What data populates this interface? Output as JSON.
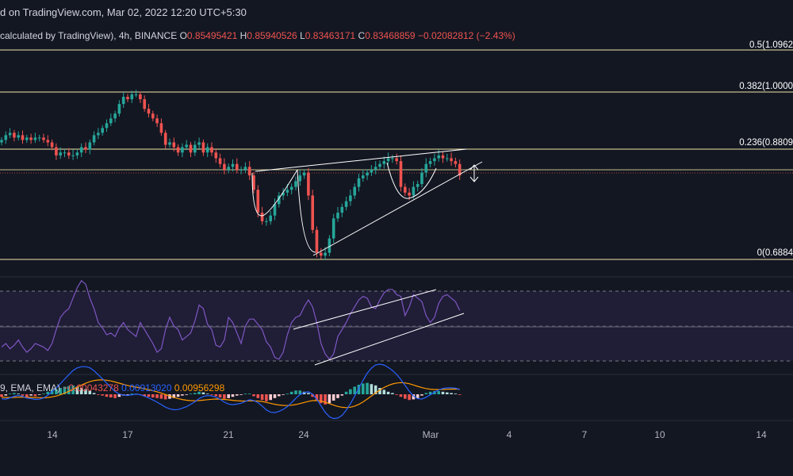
{
  "header": {
    "publish_line": "d on TradingView.com, Mar 02, 2022 12:20 UTC+5:30",
    "symbol_line": "calculated by TradingView), 4h, BINANCE",
    "ohlc": {
      "open_label": "O",
      "open": "0.85495421",
      "high_label": "H",
      "high": "0.85940526",
      "low_label": "L",
      "low": "0.83463171",
      "close_label": "C",
      "close": "0.83468859",
      "change": "−0.02082812 (−2.43%)"
    }
  },
  "fib_levels": [
    {
      "label": "0.5(1.0962",
      "price": 1.0962
    },
    {
      "label": "0.382(1.0000",
      "price": 1.0
    },
    {
      "label": "0.236(0.8809",
      "price": 0.8809
    },
    {
      "label": "0(0.6884",
      "price": 0.6884
    }
  ],
  "macd_header": {
    "params": "9, EMA, EMA)",
    "histogram": "−0.00043278",
    "macd": "0.00913020",
    "signal": "0.00956298"
  },
  "colors": {
    "background": "#131722",
    "up": "#26a69a",
    "down": "#ef5350",
    "fib_line": "#f0e6a8",
    "rsi_line": "#7e57c2",
    "rsi_band": "#2a2246",
    "macd_line": "#2962ff",
    "signal_line": "#ff9800",
    "trend_line": "#ffffff"
  },
  "x_axis": {
    "ticks": [
      {
        "label": "14",
        "bar": 13
      },
      {
        "label": "17",
        "bar": 31
      },
      {
        "label": "21",
        "bar": 55
      },
      {
        "label": "24",
        "bar": 73
      },
      {
        "label": "Mar",
        "bar": 103
      },
      {
        "label": "4",
        "bar": 121
      },
      {
        "label": "7",
        "bar": 139
      },
      {
        "label": "10",
        "bar": 157
      },
      {
        "label": "14",
        "bar": 181
      }
    ]
  },
  "chart_data": {
    "type": "candlestick",
    "interval": "4h",
    "exchange": "BINANCE",
    "price_range": [
      0.66,
      1.1
    ],
    "candles_close": [
      0.9,
      0.91,
      0.915,
      0.905,
      0.91,
      0.9,
      0.905,
      0.9,
      0.905,
      0.905,
      0.9,
      0.895,
      0.885,
      0.87,
      0.875,
      0.875,
      0.87,
      0.87,
      0.875,
      0.885,
      0.88,
      0.895,
      0.91,
      0.915,
      0.925,
      0.935,
      0.945,
      0.955,
      0.975,
      0.99,
      0.985,
      0.995,
      0.995,
      0.985,
      0.965,
      0.955,
      0.945,
      0.935,
      0.915,
      0.89,
      0.895,
      0.885,
      0.875,
      0.885,
      0.89,
      0.875,
      0.89,
      0.895,
      0.875,
      0.885,
      0.875,
      0.865,
      0.855,
      0.845,
      0.85,
      0.855,
      0.845,
      0.845,
      0.85,
      0.835,
      0.81,
      0.77,
      0.755,
      0.755,
      0.765,
      0.785,
      0.8,
      0.805,
      0.81,
      0.815,
      0.825,
      0.835,
      0.84,
      0.8,
      0.74,
      0.7,
      0.695,
      0.7,
      0.725,
      0.76,
      0.77,
      0.78,
      0.79,
      0.8,
      0.815,
      0.83,
      0.835,
      0.84,
      0.845,
      0.85,
      0.855,
      0.86,
      0.865,
      0.865,
      0.86,
      0.815,
      0.805,
      0.8,
      0.815,
      0.82,
      0.84,
      0.855,
      0.86,
      0.865,
      0.87,
      0.865,
      0.865,
      0.86,
      0.855,
      0.835
    ],
    "rsi": [
      38,
      40,
      37,
      39,
      42,
      38,
      35,
      37,
      40,
      39,
      38,
      36,
      40,
      48,
      55,
      58,
      60,
      66,
      72,
      76,
      74,
      66,
      60,
      52,
      49,
      45,
      46,
      44,
      49,
      52,
      48,
      46,
      44,
      52,
      48,
      44,
      40,
      35,
      37,
      48,
      55,
      50,
      48,
      42,
      44,
      46,
      53,
      62,
      60,
      51,
      48,
      39,
      38,
      42,
      55,
      52,
      46,
      40,
      50,
      54,
      54,
      51,
      48,
      41,
      38,
      32,
      31,
      35,
      45,
      52,
      55,
      56,
      61,
      65,
      61,
      52,
      40,
      34,
      31,
      34,
      44,
      48,
      52,
      57,
      61,
      65,
      67,
      66,
      61,
      60,
      65,
      69,
      71,
      71,
      68,
      67,
      56,
      61,
      68,
      66,
      64,
      56,
      52,
      55,
      63,
      67,
      68,
      66,
      64,
      59
    ],
    "rsi_band": [
      30,
      70
    ],
    "macd_histogram": [
      -0.002,
      -0.001,
      0.0005,
      0.001,
      0.0005,
      -0.001,
      -0.002,
      -0.001,
      -0.0015,
      -0.0005,
      0.0005,
      0.002,
      0.0035,
      0.004,
      0.005,
      0.006,
      0.0065,
      0.007,
      0.006,
      0.005,
      0.004,
      0.003,
      0.001,
      -0.0005,
      -0.001,
      -0.002,
      -0.0025,
      -0.003,
      -0.002,
      -0.001,
      -0.0005,
      0.0005,
      0.0005,
      -0.0005,
      -0.0015,
      -0.002,
      -0.0025,
      -0.003,
      -0.0035,
      -0.004,
      -0.0035,
      -0.003,
      -0.002,
      -0.001,
      -0.0005,
      0.0005,
      0.001,
      0.002,
      0.0015,
      0.0005,
      -0.0005,
      -0.0015,
      -0.0025,
      -0.0035,
      -0.003,
      -0.002,
      -0.001,
      -0.0005,
      0.0005,
      0.0005,
      -0.0015,
      -0.003,
      -0.0045,
      -0.0055,
      -0.0045,
      -0.003,
      -0.0015,
      -0.0005,
      0.0005,
      0.002,
      0.003,
      0.003,
      0.002,
      0.001,
      -0.002,
      -0.005,
      -0.007,
      -0.008,
      -0.007,
      -0.005,
      -0.003,
      -0.001,
      0.002,
      0.004,
      0.006,
      0.0075,
      0.0085,
      0.009,
      0.008,
      0.007,
      0.005,
      0.0035,
      0.002,
      0.001,
      -0.0005,
      -0.002,
      -0.0035,
      -0.0045,
      -0.004,
      -0.003,
      -0.001,
      0.001,
      0.002,
      0.0025,
      0.0025,
      0.002,
      0.0015,
      0.001,
      0.0005,
      -0.0004
    ],
    "legend": "top-left",
    "grid": false
  }
}
